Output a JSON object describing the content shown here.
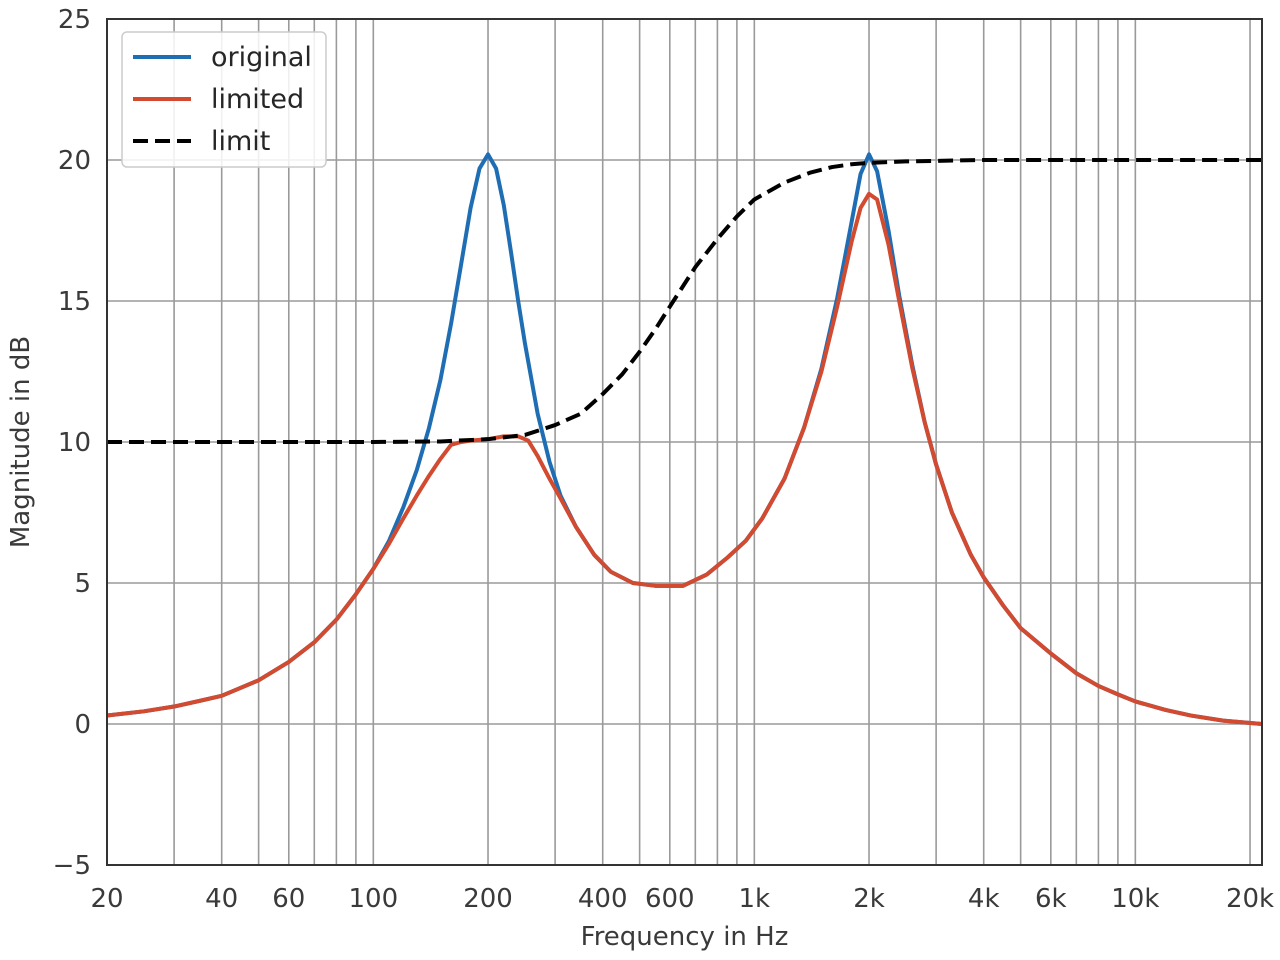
{
  "chart_data": {
    "type": "line",
    "xscale": "log",
    "xlabel": "Frequency in Hz",
    "ylabel": "Magnitude in dB",
    "xlim": [
      20,
      21500
    ],
    "ylim": [
      -5,
      25
    ],
    "grid": true,
    "legend_position": "top-left",
    "x_ticks": [
      {
        "value": 20,
        "label": "20"
      },
      {
        "value": 40,
        "label": "40"
      },
      {
        "value": 60,
        "label": "60"
      },
      {
        "value": 100,
        "label": "100"
      },
      {
        "value": 200,
        "label": "200"
      },
      {
        "value": 400,
        "label": "400"
      },
      {
        "value": 600,
        "label": "600"
      },
      {
        "value": 1000,
        "label": "1k"
      },
      {
        "value": 2000,
        "label": "2k"
      },
      {
        "value": 4000,
        "label": "4k"
      },
      {
        "value": 6000,
        "label": "6k"
      },
      {
        "value": 10000,
        "label": "10k"
      },
      {
        "value": 20000,
        "label": "20k"
      }
    ],
    "y_ticks": [
      {
        "value": -5,
        "label": "−5"
      },
      {
        "value": 0,
        "label": "0"
      },
      {
        "value": 5,
        "label": "5"
      },
      {
        "value": 10,
        "label": "10"
      },
      {
        "value": 15,
        "label": "15"
      },
      {
        "value": 20,
        "label": "20"
      },
      {
        "value": 25,
        "label": "25"
      }
    ],
    "series": [
      {
        "name": "original",
        "color": "#1f6eb4",
        "style": "solid",
        "points": [
          [
            20,
            0.3
          ],
          [
            25,
            0.45
          ],
          [
            30,
            0.62
          ],
          [
            35,
            0.82
          ],
          [
            40,
            1.0
          ],
          [
            50,
            1.55
          ],
          [
            60,
            2.2
          ],
          [
            70,
            2.9
          ],
          [
            80,
            3.7
          ],
          [
            90,
            4.6
          ],
          [
            100,
            5.5
          ],
          [
            110,
            6.5
          ],
          [
            120,
            7.7
          ],
          [
            130,
            9.0
          ],
          [
            140,
            10.5
          ],
          [
            150,
            12.2
          ],
          [
            160,
            14.2
          ],
          [
            170,
            16.3
          ],
          [
            180,
            18.3
          ],
          [
            190,
            19.7
          ],
          [
            200,
            20.2
          ],
          [
            210,
            19.7
          ],
          [
            220,
            18.4
          ],
          [
            230,
            16.7
          ],
          [
            240,
            15.0
          ],
          [
            250,
            13.5
          ],
          [
            270,
            11.0
          ],
          [
            290,
            9.3
          ],
          [
            310,
            8.1
          ],
          [
            340,
            7.0
          ],
          [
            380,
            6.0
          ],
          [
            420,
            5.4
          ],
          [
            480,
            5.0
          ],
          [
            550,
            4.9
          ],
          [
            650,
            4.9
          ],
          [
            750,
            5.3
          ],
          [
            850,
            5.9
          ],
          [
            950,
            6.5
          ],
          [
            1050,
            7.3
          ],
          [
            1200,
            8.7
          ],
          [
            1350,
            10.5
          ],
          [
            1500,
            12.6
          ],
          [
            1650,
            15.1
          ],
          [
            1800,
            17.8
          ],
          [
            1900,
            19.5
          ],
          [
            2000,
            20.2
          ],
          [
            2100,
            19.6
          ],
          [
            2250,
            17.5
          ],
          [
            2400,
            15.2
          ],
          [
            2600,
            12.7
          ],
          [
            2800,
            10.7
          ],
          [
            3000,
            9.2
          ],
          [
            3300,
            7.5
          ],
          [
            3700,
            6.0
          ],
          [
            4000,
            5.2
          ],
          [
            4500,
            4.2
          ],
          [
            5000,
            3.4
          ],
          [
            6000,
            2.5
          ],
          [
            7000,
            1.8
          ],
          [
            8000,
            1.35
          ],
          [
            9000,
            1.05
          ],
          [
            10000,
            0.8
          ],
          [
            12000,
            0.5
          ],
          [
            14000,
            0.3
          ],
          [
            17000,
            0.12
          ],
          [
            21500,
            0.0
          ]
        ]
      },
      {
        "name": "limited",
        "color": "#d24a2f",
        "style": "solid",
        "points": [
          [
            20,
            0.3
          ],
          [
            25,
            0.45
          ],
          [
            30,
            0.62
          ],
          [
            35,
            0.82
          ],
          [
            40,
            1.0
          ],
          [
            50,
            1.55
          ],
          [
            60,
            2.2
          ],
          [
            70,
            2.9
          ],
          [
            80,
            3.7
          ],
          [
            90,
            4.6
          ],
          [
            100,
            5.5
          ],
          [
            110,
            6.4
          ],
          [
            120,
            7.3
          ],
          [
            130,
            8.1
          ],
          [
            140,
            8.8
          ],
          [
            150,
            9.4
          ],
          [
            160,
            9.9
          ],
          [
            170,
            10.0
          ],
          [
            180,
            10.05
          ],
          [
            200,
            10.1
          ],
          [
            220,
            10.2
          ],
          [
            240,
            10.2
          ],
          [
            255,
            10.05
          ],
          [
            270,
            9.5
          ],
          [
            290,
            8.7
          ],
          [
            310,
            8.0
          ],
          [
            340,
            7.0
          ],
          [
            380,
            6.0
          ],
          [
            420,
            5.4
          ],
          [
            480,
            5.0
          ],
          [
            550,
            4.9
          ],
          [
            650,
            4.9
          ],
          [
            750,
            5.3
          ],
          [
            850,
            5.9
          ],
          [
            950,
            6.5
          ],
          [
            1050,
            7.3
          ],
          [
            1200,
            8.7
          ],
          [
            1350,
            10.5
          ],
          [
            1500,
            12.5
          ],
          [
            1650,
            14.8
          ],
          [
            1800,
            17.1
          ],
          [
            1900,
            18.3
          ],
          [
            2000,
            18.8
          ],
          [
            2100,
            18.6
          ],
          [
            2250,
            17.0
          ],
          [
            2400,
            15.0
          ],
          [
            2600,
            12.6
          ],
          [
            2800,
            10.7
          ],
          [
            3000,
            9.2
          ],
          [
            3300,
            7.5
          ],
          [
            3700,
            6.0
          ],
          [
            4000,
            5.2
          ],
          [
            4500,
            4.2
          ],
          [
            5000,
            3.4
          ],
          [
            6000,
            2.5
          ],
          [
            7000,
            1.8
          ],
          [
            8000,
            1.35
          ],
          [
            9000,
            1.05
          ],
          [
            10000,
            0.8
          ],
          [
            12000,
            0.5
          ],
          [
            14000,
            0.3
          ],
          [
            17000,
            0.12
          ],
          [
            21500,
            0.0
          ]
        ]
      },
      {
        "name": "limit",
        "color": "#000000",
        "style": "dashed",
        "points": [
          [
            20,
            10.0
          ],
          [
            50,
            10.0
          ],
          [
            100,
            10.0
          ],
          [
            150,
            10.02
          ],
          [
            200,
            10.1
          ],
          [
            250,
            10.25
          ],
          [
            300,
            10.6
          ],
          [
            350,
            11.0
          ],
          [
            400,
            11.7
          ],
          [
            450,
            12.4
          ],
          [
            500,
            13.2
          ],
          [
            550,
            14.0
          ],
          [
            600,
            14.8
          ],
          [
            700,
            16.2
          ],
          [
            800,
            17.2
          ],
          [
            900,
            18.0
          ],
          [
            1000,
            18.6
          ],
          [
            1200,
            19.2
          ],
          [
            1400,
            19.55
          ],
          [
            1600,
            19.75
          ],
          [
            1800,
            19.85
          ],
          [
            2000,
            19.9
          ],
          [
            2500,
            19.95
          ],
          [
            3000,
            19.97
          ],
          [
            4000,
            20.0
          ],
          [
            21500,
            20.0
          ]
        ]
      }
    ]
  }
}
